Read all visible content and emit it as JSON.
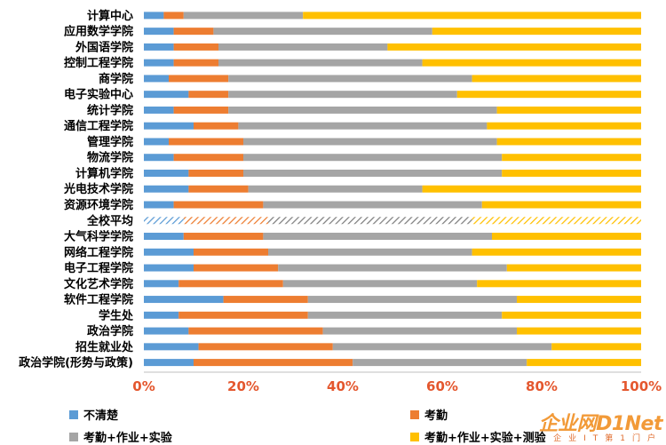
{
  "chart_data": {
    "type": "bar",
    "orientation": "horizontal",
    "stacked": true,
    "percent_axis": true,
    "grid": false,
    "legend_position": "bottom",
    "xlim": [
      0,
      100
    ],
    "x_ticks": [
      "0%",
      "20%",
      "40%",
      "60%",
      "80%",
      "100%"
    ],
    "categories": [
      "计算中心",
      "应用数学学院",
      "外国语学院",
      "控制工程学院",
      "商学院",
      "电子实验中心",
      "统计学院",
      "通信工程学院",
      "管理学院",
      "物流学院",
      "计算机学院",
      "光电技术学院",
      "资源环境学院",
      "全校平均",
      "大气科学学院",
      "网络工程学院",
      "电子工程学院",
      "文化艺术学院",
      "软件工程学院",
      "学生处",
      "政治学院",
      "招生就业处",
      "政治学院(形势与政策)"
    ],
    "highlight_category": "全校平均",
    "series": [
      {
        "name": "不清楚",
        "color": "#5b9bd5",
        "values": [
          4,
          6,
          6,
          6,
          5,
          9,
          6,
          10,
          5,
          6,
          9,
          9,
          6,
          8,
          8,
          10,
          10,
          7,
          16,
          7,
          9,
          11,
          10
        ]
      },
      {
        "name": "考勤",
        "color": "#ed7d31",
        "values": [
          4,
          8,
          9,
          9,
          12,
          8,
          11,
          9,
          15,
          14,
          11,
          12,
          18,
          17,
          16,
          15,
          17,
          21,
          17,
          26,
          27,
          27,
          32
        ]
      },
      {
        "name": "考勤+作业+实验",
        "color": "#a5a5a5",
        "values": [
          24,
          44,
          34,
          41,
          49,
          46,
          54,
          50,
          51,
          52,
          52,
          35,
          44,
          41,
          46,
          41,
          46,
          39,
          42,
          39,
          39,
          44,
          35
        ]
      },
      {
        "name": "考勤+作业+实验+测验",
        "color": "#ffc000",
        "values": [
          68,
          42,
          51,
          44,
          34,
          37,
          29,
          31,
          29,
          28,
          28,
          44,
          32,
          34,
          30,
          34,
          27,
          33,
          25,
          28,
          25,
          18,
          23
        ]
      }
    ]
  },
  "watermark": {
    "main": "企业网D1Net",
    "sub": "企业IT第1门户"
  }
}
